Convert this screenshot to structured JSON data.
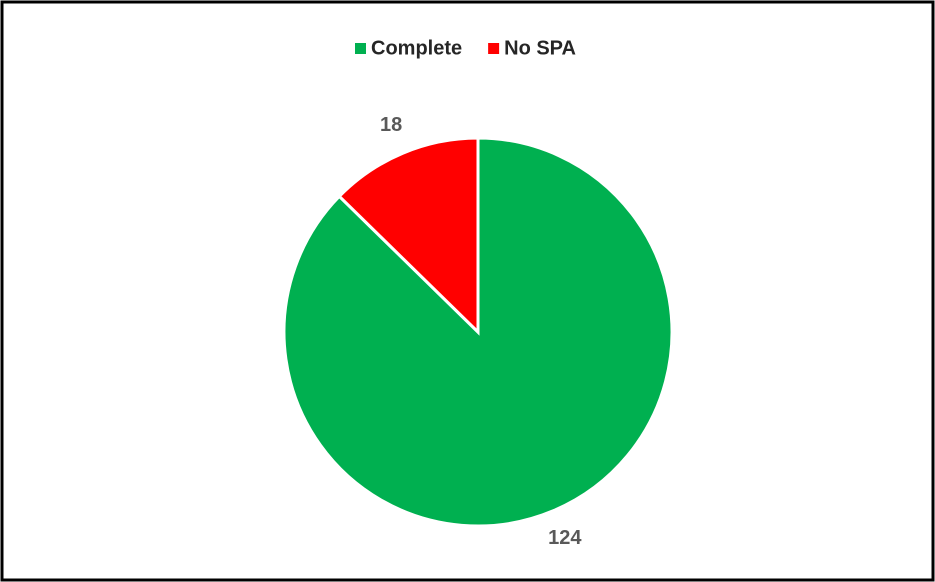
{
  "chart_data": {
    "type": "pie",
    "categories": [
      "Complete",
      "No SPA"
    ],
    "values": [
      124,
      18
    ],
    "colors": [
      "#00b050",
      "#ff0000"
    ],
    "legend": "top",
    "start_angle": 0,
    "direction": "clockwise"
  }
}
